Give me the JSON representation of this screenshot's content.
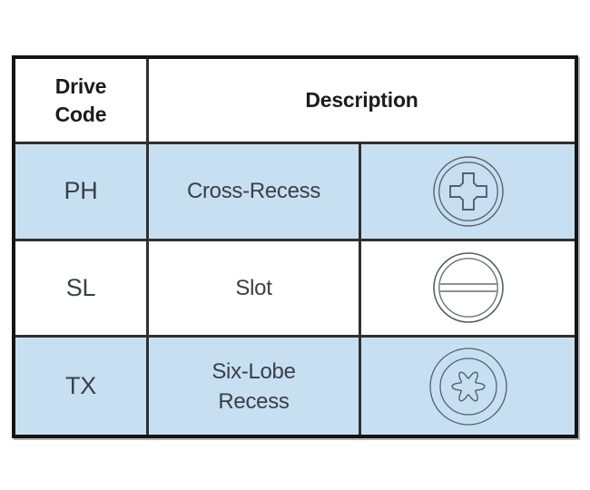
{
  "table": {
    "header": {
      "drive_code": "Drive\nCode",
      "description": "Description"
    },
    "rows": [
      {
        "code": "PH",
        "description": "Cross-Recess",
        "icon": "phillips-cross-recess-icon",
        "highlighted": true
      },
      {
        "code": "SL",
        "description": "Slot",
        "icon": "slot-icon",
        "highlighted": false
      },
      {
        "code": "TX",
        "description": "Six-Lobe\nRecess",
        "icon": "six-lobe-recess-icon",
        "highlighted": true
      }
    ],
    "colors": {
      "row_highlight": "#c6e0f1",
      "outer_border": "#141414",
      "grid_line": "#303030",
      "header_text": "#1c1c1c",
      "body_text": "#3a4047",
      "icon_stroke": "#55606b",
      "slot_line": "#8c9196"
    }
  }
}
